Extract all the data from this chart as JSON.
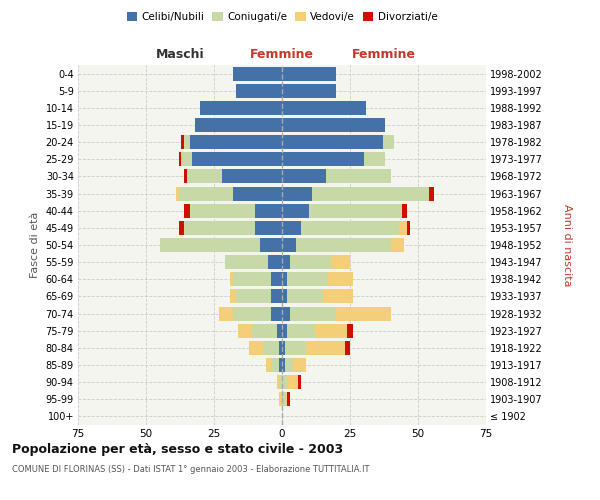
{
  "age_groups": [
    "100+",
    "95-99",
    "90-94",
    "85-89",
    "80-84",
    "75-79",
    "70-74",
    "65-69",
    "60-64",
    "55-59",
    "50-54",
    "45-49",
    "40-44",
    "35-39",
    "30-34",
    "25-29",
    "20-24",
    "15-19",
    "10-14",
    "5-9",
    "0-4"
  ],
  "birth_years": [
    "≤ 1902",
    "1903-1907",
    "1908-1912",
    "1913-1917",
    "1918-1922",
    "1923-1927",
    "1928-1932",
    "1933-1937",
    "1938-1942",
    "1943-1947",
    "1948-1952",
    "1953-1957",
    "1958-1962",
    "1963-1967",
    "1968-1972",
    "1973-1977",
    "1978-1982",
    "1983-1987",
    "1988-1992",
    "1993-1997",
    "1998-2002"
  ],
  "maschi": {
    "celibi": [
      0,
      0,
      0,
      1,
      1,
      2,
      4,
      4,
      4,
      5,
      8,
      10,
      10,
      18,
      22,
      33,
      34,
      32,
      30,
      17,
      18
    ],
    "coniugati": [
      0,
      0,
      1,
      3,
      6,
      9,
      14,
      13,
      14,
      16,
      37,
      26,
      24,
      20,
      13,
      4,
      2,
      0,
      0,
      0,
      0
    ],
    "vedovi": [
      0,
      1,
      1,
      2,
      5,
      5,
      5,
      2,
      1,
      0,
      0,
      0,
      0,
      1,
      0,
      0,
      0,
      0,
      0,
      0,
      0
    ],
    "divorziati": [
      0,
      0,
      0,
      0,
      0,
      0,
      0,
      0,
      0,
      0,
      0,
      2,
      2,
      0,
      1,
      1,
      1,
      0,
      0,
      0,
      0
    ]
  },
  "femmine": {
    "nubili": [
      0,
      0,
      0,
      1,
      1,
      2,
      3,
      2,
      2,
      3,
      5,
      7,
      10,
      11,
      16,
      30,
      37,
      38,
      31,
      20,
      20
    ],
    "coniugate": [
      0,
      1,
      2,
      3,
      8,
      10,
      17,
      13,
      15,
      15,
      35,
      36,
      34,
      43,
      24,
      8,
      4,
      0,
      0,
      0,
      0
    ],
    "vedove": [
      0,
      1,
      4,
      5,
      14,
      12,
      20,
      11,
      9,
      7,
      5,
      3,
      0,
      0,
      0,
      0,
      0,
      0,
      0,
      0,
      0
    ],
    "divorziate": [
      0,
      1,
      1,
      0,
      2,
      2,
      0,
      0,
      0,
      0,
      0,
      1,
      2,
      2,
      0,
      0,
      0,
      0,
      0,
      0,
      0
    ]
  },
  "colors": {
    "celibi": "#4472a8",
    "coniugati": "#c8d9a8",
    "vedovi": "#f5ce7a",
    "divorziati": "#cc1100"
  },
  "title": "Popolazione per età, sesso e stato civile - 2003",
  "subtitle": "COMUNE DI FLORINAS (SS) - Dati ISTAT 1° gennaio 2003 - Elaborazione TUTTITALIA.IT",
  "xlabel_left": "Maschi",
  "xlabel_right": "Femmine",
  "ylabel_left": "Fasce di età",
  "ylabel_right": "Anni di nascita",
  "xlim": 75,
  "legend_labels": [
    "Celibi/Nubili",
    "Coniugati/e",
    "Vedovi/e",
    "Divorziati/e"
  ],
  "bg_color": "#ffffff",
  "plot_bg": "#f5f5f0",
  "grid_color": "#cccccc"
}
